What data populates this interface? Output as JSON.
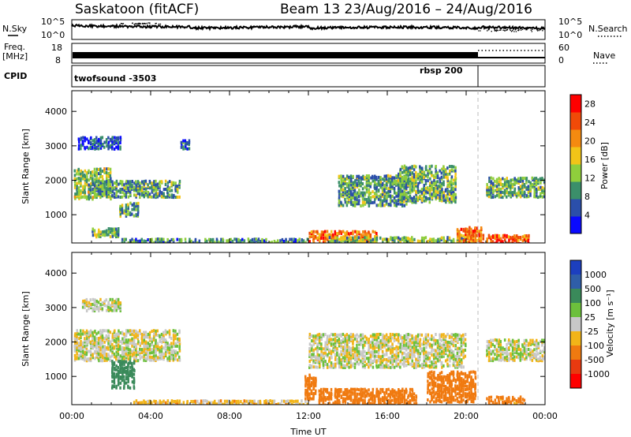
{
  "header": {
    "title": "Saskatoon (fitACF)",
    "subtitle": "Beam 13 23/Aug/2016 – 24/Aug/2016"
  },
  "summary_panels": {
    "nsky_label": "N.Sky",
    "nsky_ticks": [
      "10^5",
      "10^0"
    ],
    "nsearch_label": "N.Search",
    "nsearch_ticks": [
      "10^5",
      "10^0"
    ],
    "freq_label": "Freq.",
    "freq_unit": "[MHz]",
    "freq_ticks": [
      "18",
      "8"
    ],
    "nave_label": "Nave",
    "nave_ticks": [
      "60",
      "0"
    ],
    "cpid_label": "CPID",
    "cpid_segments": [
      {
        "name": "twofsound",
        "id": "-3503",
        "start_hour": 0,
        "end_hour": 20.6
      },
      {
        "name": "rbsp",
        "id": "200",
        "start_hour": 20.6,
        "end_hour": 24
      }
    ]
  },
  "colors": {
    "power_scale": [
      "#0a0aff",
      "#2b4faa",
      "#3b8f6a",
      "#8fce3c",
      "#f2c418",
      "#f48a10",
      "#f04a08",
      "#ff0000"
    ],
    "velocity_scale": [
      "#1c3fbf",
      "#2f5ea8",
      "#3a8a5a",
      "#6cc03c",
      "#c8c8c8",
      "#f2b418",
      "#f07a10",
      "#e83a10",
      "#ff0000"
    ],
    "ground_scatter": "#c0c0c0"
  },
  "chart_data": [
    {
      "type": "heatmap",
      "panel": "power",
      "xlabel": "",
      "ylabel": "Slant Range [km]",
      "x_ticks": [
        "00:00",
        "04:00",
        "08:00",
        "12:00",
        "16:00",
        "20:00",
        "00:00"
      ],
      "xlim_hours": [
        0,
        24
      ],
      "ylim": [
        180,
        4600
      ],
      "y_ticks": [
        1000,
        2000,
        3000,
        4000
      ],
      "colorbar": {
        "label": "Power [dB]",
        "ticks": [
          4,
          8,
          12,
          16,
          20,
          24,
          28
        ],
        "range": [
          0,
          30
        ]
      },
      "echo_regions": [
        {
          "t0": 0.1,
          "t1": 2.0,
          "r0": 1500,
          "r1": 2400,
          "level": 13
        },
        {
          "t0": 1.0,
          "t1": 5.5,
          "r0": 1550,
          "r1": 2050,
          "level": 10
        },
        {
          "t0": 0.3,
          "t1": 2.5,
          "r0": 2950,
          "r1": 3300,
          "level": 5
        },
        {
          "t0": 1.0,
          "t1": 2.4,
          "r0": 400,
          "r1": 650,
          "level": 12
        },
        {
          "t0": 2.4,
          "t1": 3.4,
          "r0": 1000,
          "r1": 1400,
          "level": 11
        },
        {
          "t0": 5.5,
          "t1": 6.0,
          "r0": 2950,
          "r1": 3200,
          "level": 6
        },
        {
          "t0": 2.5,
          "t1": 12.0,
          "r0": 180,
          "r1": 350,
          "level": 9
        },
        {
          "t0": 12.0,
          "t1": 15.5,
          "r0": 220,
          "r1": 600,
          "level": 22
        },
        {
          "t0": 13.0,
          "t1": 20.0,
          "r0": 180,
          "r1": 400,
          "level": 12
        },
        {
          "t0": 13.5,
          "t1": 17.0,
          "r0": 1300,
          "r1": 2200,
          "level": 10
        },
        {
          "t0": 16.5,
          "t1": 19.5,
          "r0": 1400,
          "r1": 2500,
          "level": 11
        },
        {
          "t0": 19.5,
          "t1": 20.8,
          "r0": 200,
          "r1": 700,
          "level": 23
        },
        {
          "t0": 20.8,
          "t1": 23.2,
          "r0": 200,
          "r1": 450,
          "level": 24
        },
        {
          "t0": 21.0,
          "t1": 24.0,
          "r0": 1550,
          "r1": 2150,
          "level": 11
        }
      ]
    },
    {
      "type": "heatmap",
      "panel": "velocity",
      "xlabel": "Time UT",
      "ylabel": "Slant Range [km]",
      "x_ticks": [
        "00:00",
        "04:00",
        "08:00",
        "12:00",
        "16:00",
        "20:00",
        "00:00"
      ],
      "xlim_hours": [
        0,
        24
      ],
      "ylim": [
        180,
        4600
      ],
      "y_ticks": [
        1000,
        2000,
        3000,
        4000
      ],
      "colorbar": {
        "label": "Velocity [m s⁻¹]",
        "ticks": [
          1000,
          500,
          100,
          25,
          -25,
          -100,
          -500,
          -1000
        ]
      },
      "echo_regions": [
        {
          "t0": 0.1,
          "t1": 5.5,
          "r0": 1500,
          "r1": 2400,
          "velocity": 0
        },
        {
          "t0": 2.0,
          "t1": 3.2,
          "r0": 700,
          "r1": 1500,
          "velocity": 400
        },
        {
          "t0": 0.5,
          "t1": 2.5,
          "r0": 2950,
          "r1": 3300,
          "velocity": 10
        },
        {
          "t0": 12.0,
          "t1": 20.0,
          "r0": 1300,
          "r1": 2300,
          "velocity": 0
        },
        {
          "t0": 3.0,
          "t1": 12.0,
          "r0": 180,
          "r1": 350,
          "velocity": -50
        },
        {
          "t0": 11.8,
          "t1": 12.4,
          "r0": 350,
          "r1": 1100,
          "velocity": -300
        },
        {
          "t0": 12.5,
          "t1": 17.5,
          "r0": 200,
          "r1": 700,
          "velocity": -200
        },
        {
          "t0": 18.0,
          "t1": 20.5,
          "r0": 300,
          "r1": 1200,
          "velocity": -200
        },
        {
          "t0": 21.0,
          "t1": 23.0,
          "r0": 200,
          "r1": 450,
          "velocity": -150
        },
        {
          "t0": 21.0,
          "t1": 24.0,
          "r0": 1500,
          "r1": 2150,
          "velocity": 0
        }
      ]
    }
  ]
}
